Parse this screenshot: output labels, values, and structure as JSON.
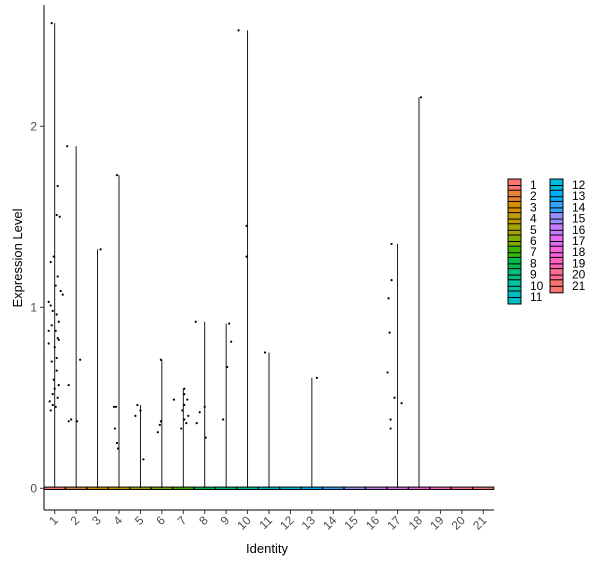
{
  "chart_data": {
    "type": "violin",
    "title": "",
    "xlabel": "Identity",
    "ylabel": "Expression Level",
    "ylim": [
      -0.12,
      2.67
    ],
    "yticks": [
      0,
      1,
      2
    ],
    "categories": [
      "1",
      "2",
      "3",
      "4",
      "5",
      "6",
      "7",
      "8",
      "9",
      "10",
      "11",
      "12",
      "13",
      "14",
      "15",
      "16",
      "17",
      "18",
      "19",
      "20",
      "21"
    ],
    "max_values": [
      2.57,
      1.89,
      1.32,
      1.73,
      0.46,
      0.71,
      0.55,
      0.92,
      0.91,
      2.53,
      0.75,
      0,
      0.61,
      0,
      0,
      0,
      1.35,
      2.16,
      0,
      0,
      0
    ],
    "colors": [
      "#F8766D",
      "#EA8331",
      "#D89000",
      "#C09B00",
      "#A3A500",
      "#7CAE00",
      "#39B600",
      "#00BB4E",
      "#00BF7D",
      "#00C1A3",
      "#00BFC4",
      "#00BAE0",
      "#00B0F6",
      "#35A2FF",
      "#9590FF",
      "#C77CFF",
      "#E76BF3",
      "#FA62DB",
      "#FF62BC",
      "#FF6C91",
      "#F8766D"
    ],
    "points": [
      [
        [
          -3,
          2.57
        ],
        [
          2,
          1.51
        ],
        [
          3,
          1.67
        ],
        [
          5,
          1.5
        ],
        [
          -4,
          1.25
        ],
        [
          -1,
          1.28
        ],
        [
          3,
          1.17
        ],
        [
          6,
          1.09
        ],
        [
          8,
          1.07
        ],
        [
          -6,
          1.03
        ],
        [
          -4,
          1.01
        ],
        [
          1,
          1.12
        ],
        [
          -2,
          0.98
        ],
        [
          2,
          0.96
        ],
        [
          4,
          0.92
        ],
        [
          -3,
          0.9
        ],
        [
          1,
          0.87
        ],
        [
          3,
          0.83
        ],
        [
          -6,
          0.8
        ],
        [
          0,
          0.78
        ],
        [
          2,
          0.72
        ],
        [
          -3,
          0.7
        ],
        [
          2,
          0.65
        ],
        [
          -1,
          0.6
        ],
        [
          4,
          0.57
        ],
        [
          -5,
          0.48
        ],
        [
          -2,
          0.46
        ],
        [
          1,
          0.45
        ],
        [
          -4,
          0.43
        ],
        [
          14,
          0.57
        ],
        [
          14,
          0.37
        ],
        [
          3,
          0.5
        ],
        [
          -2,
          0.52
        ],
        [
          0,
          0.55
        ],
        [
          4,
          0.82
        ],
        [
          -6,
          0.87
        ]
      ],
      [
        [
          -9,
          1.89
        ],
        [
          4,
          0.71
        ],
        [
          -5,
          0.38
        ],
        [
          1,
          0.37
        ]
      ],
      [
        [
          3,
          1.32
        ]
      ],
      [
        [
          -5,
          0.45
        ],
        [
          -3,
          0.45
        ],
        [
          -4,
          0.33
        ],
        [
          -2,
          0.25
        ],
        [
          -1,
          0.22
        ],
        [
          -2,
          1.73
        ]
      ],
      [
        [
          -3,
          0.46
        ],
        [
          0,
          0.43
        ],
        [
          -5,
          0.4
        ],
        [
          3,
          0.16
        ]
      ],
      [
        [
          -1,
          0.71
        ],
        [
          -1,
          0.37
        ],
        [
          -2,
          0.35
        ],
        [
          -4,
          0.31
        ],
        [
          12,
          0.49
        ]
      ],
      [
        [
          1,
          0.55
        ],
        [
          1,
          0.52
        ],
        [
          4,
          0.49
        ],
        [
          1,
          0.46
        ],
        [
          -1,
          0.43
        ],
        [
          5,
          0.4
        ],
        [
          1,
          0.38
        ],
        [
          3,
          0.36
        ],
        [
          -2,
          0.33
        ]
      ],
      [
        [
          -9,
          0.92
        ],
        [
          -5,
          0.42
        ],
        [
          0,
          0.45
        ],
        [
          1,
          0.28
        ],
        [
          -8,
          0.36
        ]
      ],
      [
        [
          3,
          0.91
        ],
        [
          5,
          0.81
        ],
        [
          1,
          0.67
        ],
        [
          -3,
          0.38
        ]
      ],
      [
        [
          -9,
          2.53
        ],
        [
          -1,
          1.45
        ],
        [
          -1,
          1.28
        ]
      ],
      [
        [
          -4,
          0.75
        ]
      ],
      [],
      [
        [
          5,
          0.61
        ]
      ],
      [],
      [],
      [],
      [
        [
          -6,
          1.35
        ],
        [
          -6,
          1.15
        ],
        [
          -9,
          1.05
        ],
        [
          -8,
          0.86
        ],
        [
          -10,
          0.64
        ],
        [
          -7,
          0.38
        ],
        [
          -7,
          0.33
        ],
        [
          -3,
          0.5
        ],
        [
          4,
          0.47
        ]
      ],
      [
        [
          2,
          2.16
        ]
      ],
      [],
      [],
      []
    ]
  }
}
